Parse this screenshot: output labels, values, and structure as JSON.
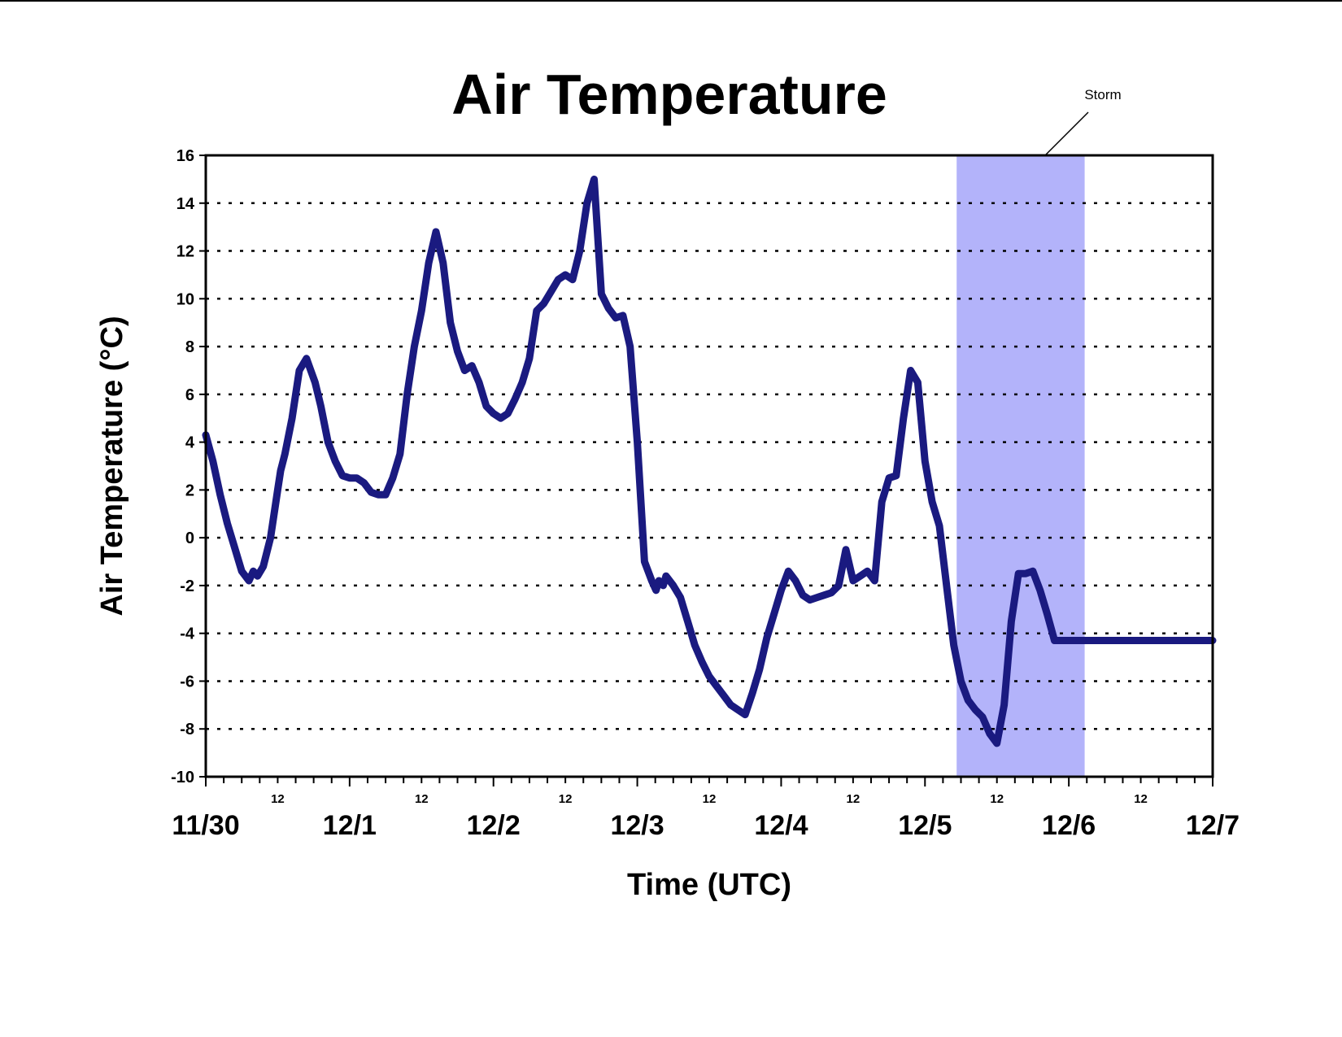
{
  "chart_data": {
    "type": "line",
    "title": "Air Temperature",
    "xlabel": "Time (UTC)",
    "ylabel": "Air Temperature (°C)",
    "ylim": [
      -10,
      16
    ],
    "yticks": [
      -10,
      -8,
      -6,
      -4,
      -2,
      0,
      2,
      4,
      6,
      8,
      10,
      12,
      14,
      16
    ],
    "xlim_days": [
      0,
      7
    ],
    "x_day_labels": [
      "11/30",
      "12/1",
      "12/2",
      "12/3",
      "12/4",
      "12/5",
      "12/6",
      "12/7"
    ],
    "x_hour_label": "12",
    "grid": "horizontal dotted",
    "line_color": "#1a1a80",
    "annotation": {
      "text": "Storm",
      "span_days": [
        5.22,
        6.11
      ],
      "color": "#b3b3fa"
    },
    "series": [
      {
        "x_days": [
          0.0,
          0.05,
          0.1,
          0.15,
          0.2,
          0.25,
          0.3,
          0.33,
          0.36,
          0.4,
          0.45,
          0.5,
          0.52,
          0.55,
          0.6,
          0.65,
          0.7,
          0.73,
          0.76,
          0.8,
          0.85,
          0.9,
          0.95,
          1.0,
          1.05,
          1.1,
          1.15,
          1.2,
          1.25,
          1.3,
          1.35,
          1.4,
          1.45,
          1.5,
          1.55,
          1.6,
          1.65,
          1.7,
          1.75,
          1.8,
          1.85,
          1.9,
          1.95,
          2.0,
          2.05,
          2.1,
          2.15,
          2.2,
          2.25,
          2.3,
          2.35,
          2.4,
          2.45,
          2.5,
          2.55,
          2.6,
          2.65,
          2.7,
          2.75,
          2.8,
          2.85,
          2.9,
          2.95,
          3.0,
          3.05,
          3.1,
          3.13,
          3.15,
          3.18,
          3.2,
          3.25,
          3.3,
          3.35,
          3.4,
          3.45,
          3.5,
          3.55,
          3.6,
          3.65,
          3.7,
          3.75,
          3.8,
          3.85,
          3.9,
          3.95,
          4.0,
          4.05,
          4.1,
          4.15,
          4.2,
          4.25,
          4.3,
          4.35,
          4.4,
          4.45,
          4.5,
          4.55,
          4.6,
          4.65,
          4.7,
          4.75,
          4.8,
          4.85,
          4.9,
          4.95,
          5.0,
          5.05,
          5.1,
          5.15,
          5.2,
          5.25,
          5.3,
          5.35,
          5.4,
          5.45,
          5.5,
          5.55,
          5.6,
          5.65,
          5.7,
          5.75,
          5.8,
          5.85,
          5.9,
          5.95,
          6.0,
          6.05,
          6.1,
          6.15,
          6.2,
          6.25,
          6.3,
          6.35,
          6.4,
          6.45,
          6.5,
          6.55,
          6.6,
          6.65,
          6.7,
          6.75,
          6.8,
          6.85,
          6.9,
          6.95,
          7.0
        ],
        "values": [
          4.3,
          3.2,
          1.8,
          0.6,
          -0.4,
          -1.4,
          -1.8,
          -1.4,
          -1.6,
          -1.2,
          0.0,
          2.0,
          2.8,
          3.5,
          5.0,
          7.0,
          7.5,
          7.0,
          6.5,
          5.5,
          4.0,
          3.2,
          2.6,
          2.5,
          2.5,
          2.3,
          1.9,
          1.8,
          1.8,
          2.5,
          3.5,
          6.0,
          8.0,
          9.5,
          11.5,
          12.8,
          11.5,
          9.0,
          7.8,
          7.0,
          7.2,
          6.5,
          5.5,
          5.2,
          5.0,
          5.2,
          5.8,
          6.5,
          7.5,
          9.5,
          9.8,
          10.3,
          10.8,
          11.0,
          10.8,
          12.0,
          14.0,
          15.0,
          10.2,
          9.6,
          9.2,
          9.3,
          8.0,
          4.0,
          -1.0,
          -1.8,
          -2.2,
          -1.8,
          -2.0,
          -1.6,
          -2.0,
          -2.5,
          -3.5,
          -4.5,
          -5.2,
          -5.8,
          -6.2,
          -6.6,
          -7.0,
          -7.2,
          -7.4,
          -6.5,
          -5.5,
          -4.2,
          -3.2,
          -2.2,
          -1.4,
          -1.8,
          -2.4,
          -2.6,
          -2.5,
          -2.4,
          -2.3,
          -2.0,
          -0.5,
          -1.8,
          -1.6,
          -1.4,
          -1.8,
          1.5,
          2.5,
          2.6,
          5.0,
          7.0,
          6.5,
          3.2,
          1.5,
          0.5,
          -2.0,
          -4.5,
          -6.0,
          -6.8,
          -7.2,
          -7.5,
          -8.2,
          -8.6,
          -7.0,
          -3.5,
          -1.5,
          -1.5,
          -1.4,
          -2.2,
          -3.2,
          -4.3,
          -4.3,
          -4.3,
          -4.3,
          -4.3,
          -4.3,
          -4.3,
          -4.3,
          -4.3,
          -4.3,
          -4.3,
          -4.3,
          -4.3,
          -4.3,
          -4.3,
          -4.3,
          -4.3,
          -4.3,
          -4.3,
          -4.3,
          -4.3,
          -4.3,
          -4.3
        ],
        "x_days_extra_note": "",
        "x_days_full": [
          0.0,
          0.05,
          0.1,
          0.15,
          0.2,
          0.25,
          0.3,
          0.33,
          0.36,
          0.4,
          0.45,
          0.5,
          0.52,
          0.55,
          0.6,
          0.65,
          0.7,
          0.73,
          0.76,
          0.8,
          0.85,
          0.9,
          0.95,
          1.0,
          1.05,
          1.1,
          1.15,
          1.2,
          1.25,
          1.3,
          1.35,
          1.4,
          1.45,
          1.5,
          1.55,
          1.6,
          1.65,
          1.7,
          1.75,
          1.8,
          1.85,
          1.9,
          1.95,
          2.0,
          2.05,
          2.1,
          2.15,
          2.2,
          2.25,
          2.3,
          2.35,
          2.4,
          2.45,
          2.5,
          2.55,
          2.6,
          2.65,
          2.7,
          2.75,
          2.8,
          2.85,
          2.9,
          2.95,
          3.0,
          3.05,
          3.1,
          3.13,
          3.15,
          3.18,
          3.2,
          3.25,
          3.3,
          3.35,
          3.4,
          3.45,
          3.5,
          3.55,
          3.6,
          3.65,
          3.7,
          3.75,
          3.8,
          3.85,
          3.9,
          3.95,
          4.0,
          4.05,
          4.1,
          4.15,
          4.2,
          4.25,
          4.3,
          4.35,
          4.4,
          4.45,
          4.5,
          4.55,
          4.6,
          4.65,
          4.7,
          4.75,
          4.8,
          4.85,
          4.9,
          4.95,
          5.0,
          5.05,
          5.1,
          5.15,
          5.2,
          5.25,
          5.3,
          5.35,
          5.4,
          5.45,
          5.5,
          5.55,
          5.6,
          5.65,
          5.7,
          5.75,
          5.8,
          5.85,
          5.9,
          5.95,
          6.0,
          6.05,
          6.1,
          6.15,
          6.2,
          6.25,
          6.3,
          6.35,
          6.4,
          6.45,
          6.5,
          6.55,
          6.6,
          6.65,
          6.7,
          6.75,
          6.8,
          6.85,
          6.9,
          6.95,
          7.0
        ]
      }
    ]
  }
}
